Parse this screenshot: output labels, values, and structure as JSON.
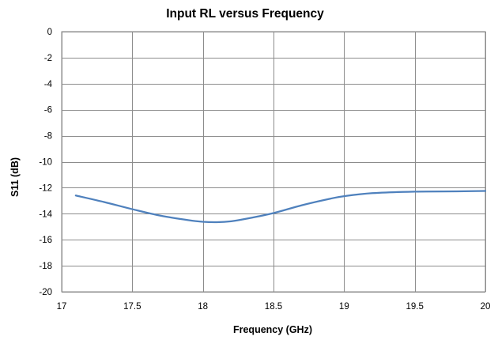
{
  "chart_data": {
    "type": "line",
    "title": "Input RL versus Frequency",
    "xlabel": "Frequency (GHz)",
    "ylabel": "S11 (dB)",
    "xlim": [
      17,
      20
    ],
    "ylim": [
      -20,
      0
    ],
    "xticks": [
      17,
      17.5,
      18,
      18.5,
      19,
      19.5,
      20
    ],
    "xtick_labels": [
      "17",
      "17.5",
      "18",
      "18.5",
      "19",
      "19.5",
      "20"
    ],
    "yticks": [
      0,
      -2,
      -4,
      -6,
      -8,
      -10,
      -12,
      -14,
      -16,
      -18,
      -20
    ],
    "ytick_labels": [
      "0",
      "-2",
      "-4",
      "-6",
      "-8",
      "-10",
      "-12",
      "-14",
      "-16",
      "-18",
      "-20"
    ],
    "grid": true,
    "legend": "none",
    "series": [
      {
        "color": "#4f81bd",
        "x": [
          17.1,
          17.3,
          17.5,
          17.7,
          17.9,
          18.0,
          18.1,
          18.2,
          18.3,
          18.5,
          18.7,
          18.9,
          19.0,
          19.2,
          19.5,
          19.8,
          20.0
        ],
        "y": [
          -12.6,
          -13.1,
          -13.65,
          -14.15,
          -14.5,
          -14.62,
          -14.65,
          -14.58,
          -14.4,
          -13.95,
          -13.35,
          -12.85,
          -12.65,
          -12.42,
          -12.3,
          -12.28,
          -12.25
        ]
      }
    ]
  }
}
